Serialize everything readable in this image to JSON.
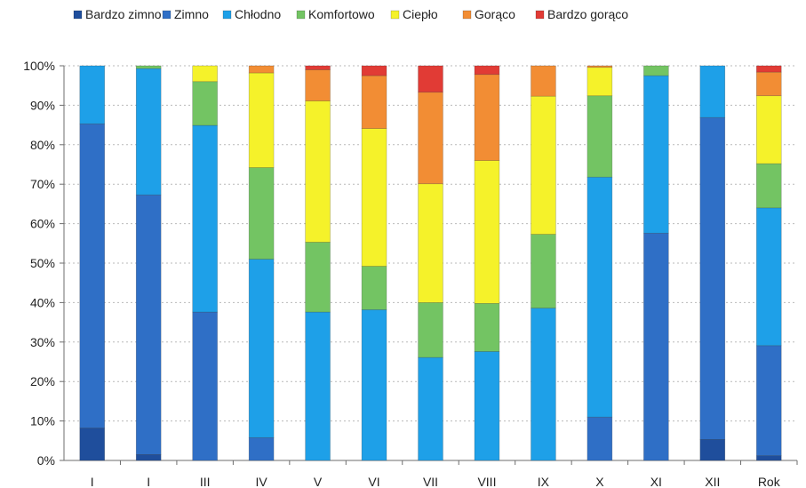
{
  "chart_data": {
    "type": "bar",
    "stacked": true,
    "title": "",
    "xlabel": "",
    "ylabel": "",
    "ylim": [
      0,
      100
    ],
    "y_ticks": [
      "0%",
      "10%",
      "20%",
      "30%",
      "40%",
      "50%",
      "60%",
      "70%",
      "80%",
      "90%",
      "100%"
    ],
    "grid": true,
    "legend_position": "top",
    "categories": [
      "I",
      "I",
      "III",
      "IV",
      "V",
      "VI",
      "VII",
      "VIII",
      "IX",
      "X",
      "XI",
      "XII",
      "Rok"
    ],
    "series": [
      {
        "name": "Bardzo zimno",
        "color": "#1f4e9c",
        "values": [
          8.2,
          1.5,
          0,
          0,
          0,
          0,
          0,
          0,
          0,
          0,
          0,
          5.3,
          1.2
        ]
      },
      {
        "name": "Zimno",
        "color": "#2f6fc6",
        "values": [
          77.1,
          65.8,
          37.6,
          5.8,
          0,
          0,
          0,
          0,
          0,
          11.0,
          57.6,
          81.6,
          27.9
        ]
      },
      {
        "name": "Chłodno",
        "color": "#1ea0e8",
        "values": [
          14.7,
          32.0,
          47.3,
          45.2,
          37.6,
          38.2,
          26.1,
          27.6,
          38.6,
          60.8,
          39.9,
          13.1,
          34.9
        ]
      },
      {
        "name": "Komfortowo",
        "color": "#73c463",
        "values": [
          0,
          0.7,
          11.1,
          23.2,
          17.7,
          11.0,
          13.9,
          12.2,
          18.7,
          20.6,
          2.5,
          0,
          11.2
        ]
      },
      {
        "name": "Ciepło",
        "color": "#f5f22a",
        "values": [
          0,
          0,
          4.0,
          24.0,
          35.8,
          34.9,
          30.1,
          36.2,
          35.0,
          7.2,
          0,
          0,
          17.2
        ]
      },
      {
        "name": "Gorąco",
        "color": "#f28d34",
        "values": [
          0,
          0,
          0,
          1.8,
          7.9,
          13.4,
          23.2,
          21.8,
          7.7,
          0.4,
          0,
          0,
          6.0
        ]
      },
      {
        "name": "Bardzo gorąco",
        "color": "#e13b35",
        "values": [
          0,
          0,
          0,
          0,
          1.0,
          2.5,
          6.7,
          2.2,
          0,
          0,
          0,
          0,
          1.6
        ]
      }
    ]
  }
}
